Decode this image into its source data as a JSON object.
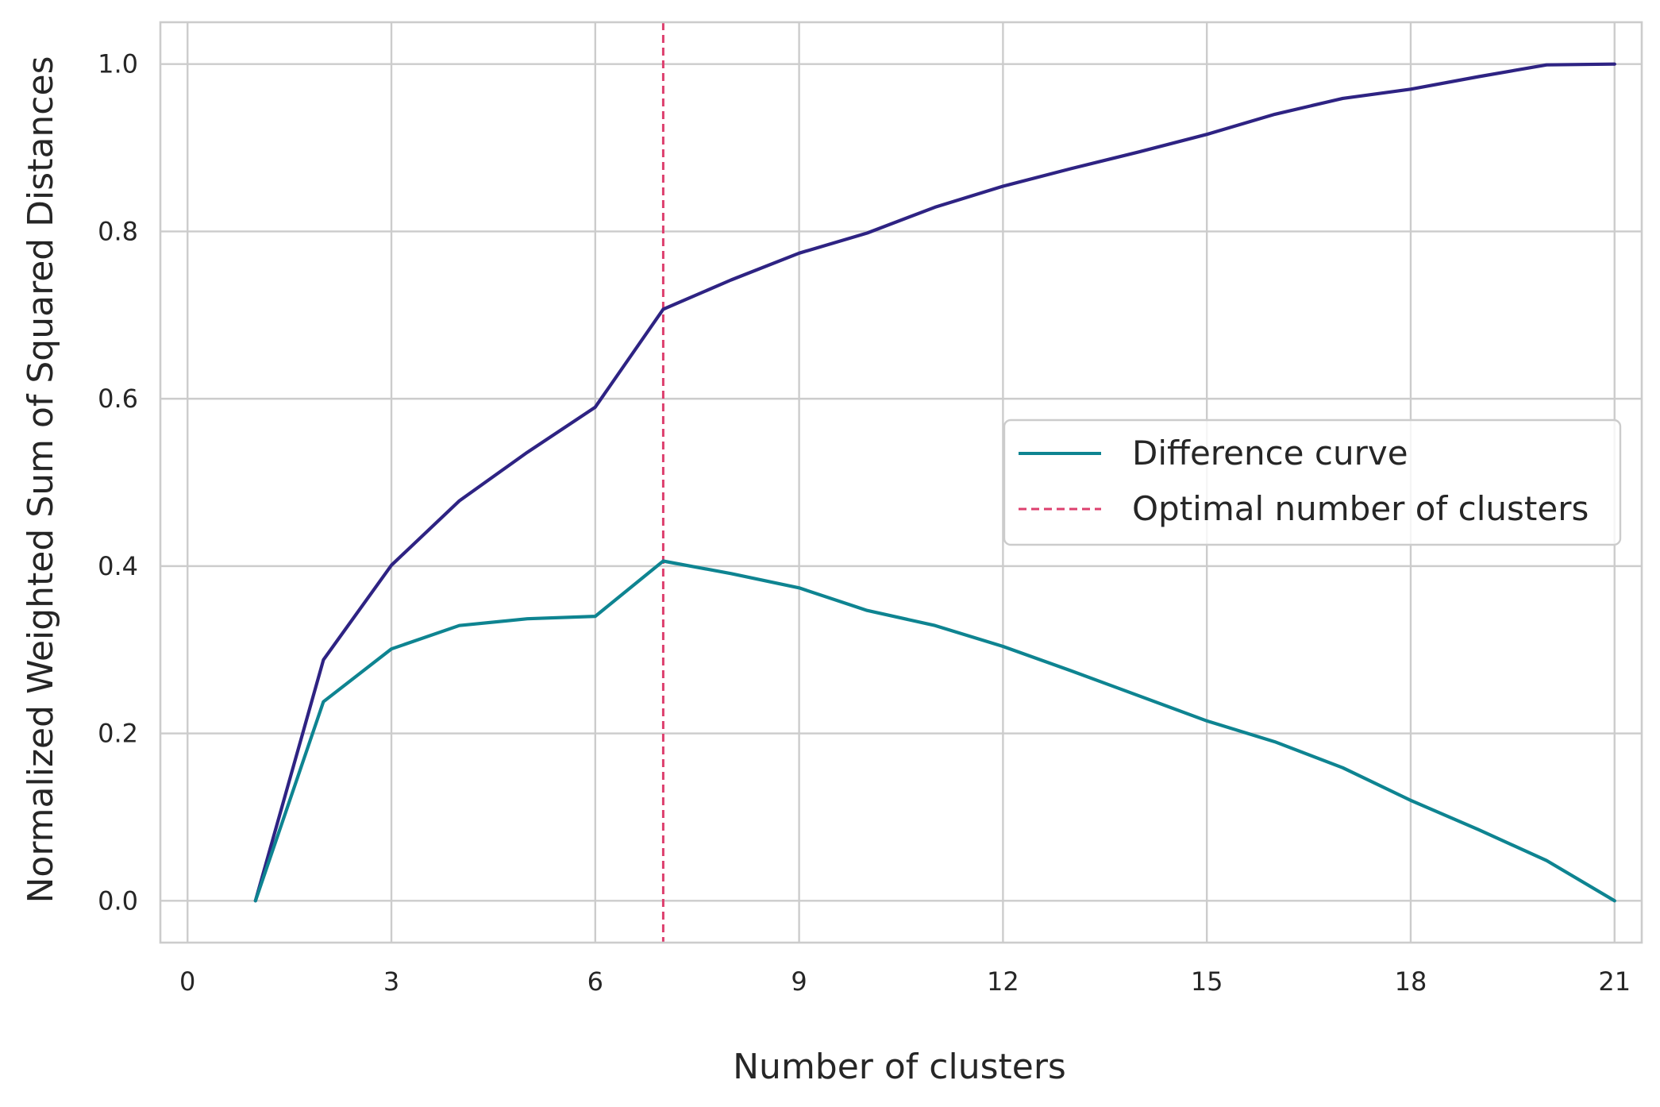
{
  "chart_data": {
    "type": "line",
    "title": "",
    "xlabel": "Number of clusters",
    "ylabel": "Normalized Weighted Sum of Squared Distances",
    "xlim": [
      -0.4,
      21.4
    ],
    "ylim": [
      -0.05,
      1.05
    ],
    "xticks": [
      0,
      3,
      6,
      9,
      12,
      15,
      18,
      21
    ],
    "xtick_labels": [
      "0",
      "3",
      "6",
      "9",
      "12",
      "15",
      "18",
      "21"
    ],
    "yticks": [
      0.0,
      0.2,
      0.4,
      0.6,
      0.8,
      1.0
    ],
    "ytick_labels": [
      "0.0",
      "0.2",
      "0.4",
      "0.6",
      "0.8",
      "1.0"
    ],
    "grid": true,
    "legend_position": "center-right",
    "series": [
      {
        "name": "",
        "color": "#2e2383",
        "style": "solid",
        "x": [
          1,
          2,
          3,
          4,
          5,
          6,
          7,
          8,
          9,
          10,
          11,
          12,
          13,
          14,
          15,
          16,
          17,
          18,
          19,
          20,
          21
        ],
        "y": [
          0.0,
          0.288,
          0.401,
          0.478,
          0.536,
          0.59,
          0.707,
          0.742,
          0.774,
          0.798,
          0.829,
          0.854,
          0.875,
          0.895,
          0.916,
          0.94,
          0.959,
          0.97,
          0.985,
          0.999,
          1.0
        ]
      },
      {
        "name": "Difference curve",
        "color": "#0e8491",
        "style": "solid",
        "x": [
          1,
          2,
          3,
          4,
          5,
          6,
          7,
          8,
          9,
          10,
          11,
          12,
          13,
          14,
          15,
          16,
          17,
          18,
          19,
          20,
          21
        ],
        "y": [
          0.0,
          0.238,
          0.301,
          0.329,
          0.337,
          0.34,
          0.406,
          0.391,
          0.374,
          0.347,
          0.329,
          0.304,
          0.275,
          0.245,
          0.215,
          0.19,
          0.159,
          0.12,
          0.085,
          0.048,
          0.0
        ]
      }
    ],
    "vlines": [
      {
        "name": "Optimal number of clusters",
        "x": 7,
        "color": "#dd3f6e",
        "style": "dashed"
      }
    ],
    "legend": [
      "Difference curve",
      "Optimal number of clusters"
    ]
  }
}
